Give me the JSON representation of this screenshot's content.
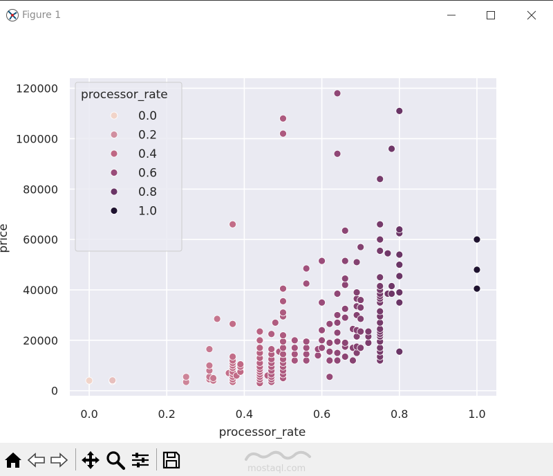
{
  "window": {
    "title": "Figure 1",
    "icon": "matplotlib-icon",
    "controls": [
      "minimize-icon",
      "maximize-icon",
      "close-icon"
    ]
  },
  "toolbar": {
    "buttons": [
      "home-icon",
      "back-icon",
      "forward-icon",
      "pan-icon",
      "zoom-icon",
      "configure-subplots-icon",
      "save-icon"
    ]
  },
  "watermark": {
    "text": "mostaql.com"
  },
  "chart_data": {
    "type": "scatter",
    "xlabel": "processor_rate",
    "ylabel": "price",
    "xlim": [
      -0.05,
      1.05
    ],
    "ylim": [
      -2000,
      124000
    ],
    "xticks": [
      "0.0",
      "0.2",
      "0.4",
      "0.6",
      "0.8",
      "1.0"
    ],
    "yticks": [
      "0",
      "20000",
      "40000",
      "60000",
      "80000",
      "100000",
      "120000"
    ],
    "grid": true,
    "background_color": "#eaeaf2",
    "legend": {
      "title": "processor_rate",
      "placement": "top-left",
      "entries": [
        {
          "label": "0.0",
          "color": "#f1d4c9"
        },
        {
          "label": "0.2",
          "color": "#d18fa0"
        },
        {
          "label": "0.4",
          "color": "#bf6784"
        },
        {
          "label": "0.6",
          "color": "#9a4c7a"
        },
        {
          "label": "0.8",
          "color": "#6a3566"
        },
        {
          "label": "1.0",
          "color": "#1f1330"
        }
      ]
    },
    "points": [
      [
        0.0,
        4000
      ],
      [
        0.06,
        3800
      ],
      [
        0.06,
        4100
      ],
      [
        0.25,
        3500
      ],
      [
        0.25,
        5500
      ],
      [
        0.31,
        4500
      ],
      [
        0.31,
        5500
      ],
      [
        0.31,
        8000
      ],
      [
        0.31,
        10000
      ],
      [
        0.31,
        16500
      ],
      [
        0.32,
        4000
      ],
      [
        0.32,
        5000
      ],
      [
        0.33,
        28500
      ],
      [
        0.36,
        7000
      ],
      [
        0.37,
        3500
      ],
      [
        0.37,
        4500
      ],
      [
        0.37,
        5500
      ],
      [
        0.37,
        6500
      ],
      [
        0.37,
        7500
      ],
      [
        0.37,
        9000
      ],
      [
        0.37,
        10000
      ],
      [
        0.37,
        11000
      ],
      [
        0.37,
        12000
      ],
      [
        0.37,
        13500
      ],
      [
        0.37,
        26500
      ],
      [
        0.37,
        66000
      ],
      [
        0.38,
        6000
      ],
      [
        0.39,
        7500
      ],
      [
        0.39,
        9500
      ],
      [
        0.39,
        10500
      ],
      [
        0.44,
        3000
      ],
      [
        0.44,
        4500
      ],
      [
        0.44,
        5500
      ],
      [
        0.44,
        6500
      ],
      [
        0.44,
        7500
      ],
      [
        0.44,
        8500
      ],
      [
        0.44,
        9500
      ],
      [
        0.44,
        11000
      ],
      [
        0.44,
        13000
      ],
      [
        0.44,
        15000
      ],
      [
        0.44,
        17000
      ],
      [
        0.44,
        20000
      ],
      [
        0.44,
        23500
      ],
      [
        0.46,
        6000
      ],
      [
        0.47,
        3500
      ],
      [
        0.47,
        4500
      ],
      [
        0.47,
        5500
      ],
      [
        0.47,
        6500
      ],
      [
        0.47,
        8000
      ],
      [
        0.47,
        9500
      ],
      [
        0.47,
        11000
      ],
      [
        0.47,
        12500
      ],
      [
        0.47,
        14500
      ],
      [
        0.47,
        16500
      ],
      [
        0.47,
        22500
      ],
      [
        0.48,
        27000
      ],
      [
        0.49,
        15500
      ],
      [
        0.5,
        5000
      ],
      [
        0.5,
        6500
      ],
      [
        0.5,
        8000
      ],
      [
        0.5,
        9500
      ],
      [
        0.5,
        11000
      ],
      [
        0.5,
        12500
      ],
      [
        0.5,
        14500
      ],
      [
        0.5,
        17000
      ],
      [
        0.5,
        19500
      ],
      [
        0.5,
        22000
      ],
      [
        0.5,
        29500
      ],
      [
        0.5,
        31000
      ],
      [
        0.5,
        35500
      ],
      [
        0.5,
        40500
      ],
      [
        0.5,
        102000
      ],
      [
        0.5,
        108000
      ],
      [
        0.53,
        12000
      ],
      [
        0.53,
        14500
      ],
      [
        0.53,
        17000
      ],
      [
        0.53,
        20000
      ],
      [
        0.56,
        12000
      ],
      [
        0.56,
        14500
      ],
      [
        0.56,
        17000
      ],
      [
        0.56,
        19500
      ],
      [
        0.56,
        42500
      ],
      [
        0.56,
        48500
      ],
      [
        0.59,
        14000
      ],
      [
        0.59,
        16500
      ],
      [
        0.6,
        17000
      ],
      [
        0.6,
        20000
      ],
      [
        0.6,
        24000
      ],
      [
        0.6,
        35000
      ],
      [
        0.6,
        51500
      ],
      [
        0.62,
        5500
      ],
      [
        0.62,
        12000
      ],
      [
        0.62,
        15500
      ],
      [
        0.62,
        19000
      ],
      [
        0.62,
        26500
      ],
      [
        0.64,
        12000
      ],
      [
        0.64,
        15000
      ],
      [
        0.64,
        19500
      ],
      [
        0.64,
        23000
      ],
      [
        0.64,
        27000
      ],
      [
        0.64,
        30000
      ],
      [
        0.64,
        38500
      ],
      [
        0.64,
        94000
      ],
      [
        0.64,
        118000
      ],
      [
        0.66,
        13500
      ],
      [
        0.66,
        17500
      ],
      [
        0.66,
        19000
      ],
      [
        0.66,
        29000
      ],
      [
        0.66,
        32500
      ],
      [
        0.66,
        42000
      ],
      [
        0.66,
        44500
      ],
      [
        0.66,
        51500
      ],
      [
        0.66,
        63500
      ],
      [
        0.68,
        12000
      ],
      [
        0.68,
        17000
      ],
      [
        0.68,
        24500
      ],
      [
        0.69,
        15000
      ],
      [
        0.69,
        17500
      ],
      [
        0.69,
        21500
      ],
      [
        0.69,
        24000
      ],
      [
        0.69,
        30000
      ],
      [
        0.69,
        33500
      ],
      [
        0.69,
        36500
      ],
      [
        0.69,
        39000
      ],
      [
        0.69,
        51000
      ],
      [
        0.7,
        17000
      ],
      [
        0.7,
        23500
      ],
      [
        0.7,
        28500
      ],
      [
        0.7,
        33000
      ],
      [
        0.7,
        36000
      ],
      [
        0.7,
        57000
      ],
      [
        0.72,
        19000
      ],
      [
        0.72,
        21500
      ],
      [
        0.72,
        23500
      ],
      [
        0.75,
        12000
      ],
      [
        0.75,
        13500
      ],
      [
        0.75,
        15500
      ],
      [
        0.75,
        17000
      ],
      [
        0.75,
        19500
      ],
      [
        0.75,
        21500
      ],
      [
        0.75,
        22500
      ],
      [
        0.75,
        23500
      ],
      [
        0.75,
        24500
      ],
      [
        0.75,
        27000
      ],
      [
        0.75,
        29500
      ],
      [
        0.75,
        31500
      ],
      [
        0.75,
        35000
      ],
      [
        0.75,
        36500
      ],
      [
        0.75,
        37500
      ],
      [
        0.75,
        38500
      ],
      [
        0.75,
        40000
      ],
      [
        0.75,
        41500
      ],
      [
        0.75,
        45000
      ],
      [
        0.75,
        55500
      ],
      [
        0.75,
        60000
      ],
      [
        0.75,
        66000
      ],
      [
        0.75,
        84000
      ],
      [
        0.77,
        38500
      ],
      [
        0.77,
        54500
      ],
      [
        0.78,
        38500
      ],
      [
        0.78,
        41500
      ],
      [
        0.78,
        96000
      ],
      [
        0.8,
        15500
      ],
      [
        0.8,
        35000
      ],
      [
        0.8,
        39000
      ],
      [
        0.8,
        45500
      ],
      [
        0.8,
        50000
      ],
      [
        0.8,
        54000
      ],
      [
        0.8,
        62500
      ],
      [
        0.8,
        64000
      ],
      [
        0.8,
        111000
      ],
      [
        1.0,
        40500
      ],
      [
        1.0,
        48000
      ],
      [
        1.0,
        60000
      ]
    ]
  }
}
